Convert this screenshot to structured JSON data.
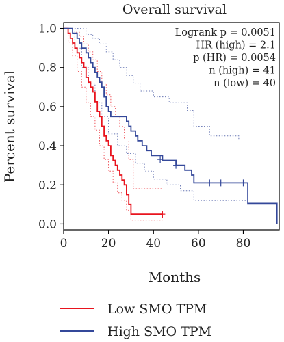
{
  "chart_data": {
    "type": "line",
    "title": "Overall survival",
    "xlabel": "Months",
    "ylabel": "Percent survival",
    "xlim": [
      0,
      96
    ],
    "ylim": [
      -0.03,
      1.03
    ],
    "xticks": [
      0,
      20,
      40,
      60,
      80
    ],
    "xtick_labels": [
      "0",
      "20",
      "40",
      "60",
      "80"
    ],
    "yticks": [
      0,
      0.2,
      0.4,
      0.6,
      0.8,
      1.0
    ],
    "ytick_labels": [
      "0.0",
      "0.2",
      "0.4",
      "0.6",
      "0.8",
      "1.0"
    ],
    "grid": false,
    "legend_position": "bottom",
    "stats": [
      "Logrank p = 0.0051",
      "HR (high) = 2.1",
      "p (HR) = 0.0054",
      "n (high) = 41",
      "n (low) = 40"
    ],
    "series": [
      {
        "name": "Low SMO TPM",
        "color": "#e8141e",
        "steps": [
          [
            0,
            1.0
          ],
          [
            2,
            0.975
          ],
          [
            3,
            0.95
          ],
          [
            4,
            0.925
          ],
          [
            5,
            0.9
          ],
          [
            6,
            0.875
          ],
          [
            7,
            0.85
          ],
          [
            8,
            0.825
          ],
          [
            9,
            0.8
          ],
          [
            10,
            0.75
          ],
          [
            11,
            0.725
          ],
          [
            12,
            0.7
          ],
          [
            13,
            0.675
          ],
          [
            14,
            0.625
          ],
          [
            15,
            0.575
          ],
          [
            16,
            0.55
          ],
          [
            17,
            0.5
          ],
          [
            18,
            0.45
          ],
          [
            19,
            0.425
          ],
          [
            20,
            0.4
          ],
          [
            21,
            0.35
          ],
          [
            22,
            0.325
          ],
          [
            23,
            0.3
          ],
          [
            24,
            0.275
          ],
          [
            25,
            0.25
          ],
          [
            26,
            0.225
          ],
          [
            27,
            0.2
          ],
          [
            28,
            0.15
          ],
          [
            29,
            0.1
          ],
          [
            30,
            0.05
          ]
        ],
        "end": 44,
        "censored": [
          [
            44,
            0.05
          ]
        ],
        "ci_upper": [
          [
            0,
            1.0
          ],
          [
            3,
            1.0
          ],
          [
            5,
            0.98
          ],
          [
            7,
            0.96
          ],
          [
            9,
            0.92
          ],
          [
            11,
            0.88
          ],
          [
            13,
            0.84
          ],
          [
            15,
            0.78
          ],
          [
            17,
            0.72
          ],
          [
            19,
            0.66
          ],
          [
            21,
            0.6
          ],
          [
            23,
            0.55
          ],
          [
            25,
            0.5
          ],
          [
            27,
            0.43
          ],
          [
            29,
            0.33
          ],
          [
            31,
            0.18
          ]
        ],
        "ci_lower": [
          [
            0,
            1.0
          ],
          [
            2,
            0.93
          ],
          [
            4,
            0.86
          ],
          [
            6,
            0.78
          ],
          [
            8,
            0.7
          ],
          [
            10,
            0.62
          ],
          [
            12,
            0.55
          ],
          [
            14,
            0.48
          ],
          [
            16,
            0.4
          ],
          [
            18,
            0.33
          ],
          [
            20,
            0.27
          ],
          [
            22,
            0.21
          ],
          [
            24,
            0.16
          ],
          [
            26,
            0.12
          ],
          [
            28,
            0.07
          ],
          [
            30,
            0.02
          ]
        ],
        "ci_end": 44
      },
      {
        "name": "High SMO TPM",
        "color": "#34489a",
        "steps": [
          [
            0,
            1.0
          ],
          [
            4,
            0.975
          ],
          [
            6,
            0.95
          ],
          [
            7,
            0.925
          ],
          [
            8,
            0.9
          ],
          [
            10,
            0.875
          ],
          [
            11,
            0.85
          ],
          [
            12,
            0.825
          ],
          [
            13,
            0.8
          ],
          [
            14,
            0.775
          ],
          [
            15,
            0.75
          ],
          [
            16,
            0.725
          ],
          [
            17,
            0.7
          ],
          [
            18,
            0.65
          ],
          [
            19,
            0.6
          ],
          [
            20,
            0.575
          ],
          [
            21,
            0.55
          ],
          [
            28,
            0.525
          ],
          [
            29,
            0.5
          ],
          [
            30,
            0.475
          ],
          [
            32,
            0.45
          ],
          [
            33,
            0.425
          ],
          [
            35,
            0.4
          ],
          [
            37,
            0.375
          ],
          [
            39,
            0.35
          ],
          [
            44,
            0.325
          ],
          [
            50,
            0.3
          ],
          [
            54,
            0.275
          ],
          [
            57,
            0.25
          ],
          [
            58,
            0.21
          ],
          [
            82,
            0.105
          ],
          [
            95,
            0.0
          ]
        ],
        "end": 95,
        "censored": [
          [
            43,
            0.33
          ],
          [
            50,
            0.3
          ],
          [
            65,
            0.21
          ],
          [
            70,
            0.21
          ],
          [
            80,
            0.21
          ]
        ],
        "ci_upper": [
          [
            0,
            1.0
          ],
          [
            8,
            1.0
          ],
          [
            10,
            0.97
          ],
          [
            13,
            0.95
          ],
          [
            16,
            0.92
          ],
          [
            19,
            0.88
          ],
          [
            22,
            0.84
          ],
          [
            25,
            0.8
          ],
          [
            28,
            0.76
          ],
          [
            31,
            0.72
          ],
          [
            34,
            0.68
          ],
          [
            40,
            0.65
          ],
          [
            47,
            0.62
          ],
          [
            55,
            0.58
          ],
          [
            58,
            0.5
          ],
          [
            65,
            0.45
          ],
          [
            78,
            0.43
          ],
          [
            82,
            0.43
          ]
        ],
        "ci_lower": [
          [
            0,
            1.0
          ],
          [
            5,
            0.9
          ],
          [
            8,
            0.8
          ],
          [
            11,
            0.72
          ],
          [
            14,
            0.62
          ],
          [
            17,
            0.55
          ],
          [
            20,
            0.46
          ],
          [
            24,
            0.4
          ],
          [
            28,
            0.36
          ],
          [
            32,
            0.31
          ],
          [
            36,
            0.27
          ],
          [
            40,
            0.23
          ],
          [
            46,
            0.2
          ],
          [
            52,
            0.17
          ],
          [
            58,
            0.12
          ],
          [
            82,
            0.12
          ]
        ],
        "ci_end": 82
      }
    ]
  }
}
